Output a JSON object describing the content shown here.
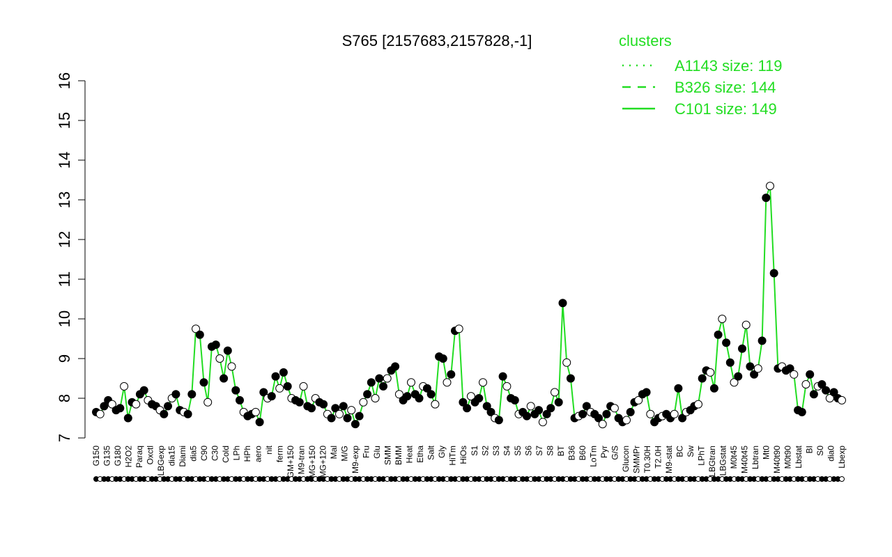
{
  "chart_data": {
    "type": "line",
    "title": "S765 [2157683,2157828,-1]",
    "xlabel": "",
    "ylabel": "",
    "ylim": [
      7,
      16
    ],
    "yticks": [
      7,
      8,
      9,
      10,
      11,
      12,
      13,
      14,
      15,
      16
    ],
    "grid": false,
    "legend_position": "top-right",
    "legend": {
      "title": "clusters",
      "entries": [
        {
          "label": "A1143 size: 119",
          "style": "dotted"
        },
        {
          "label": "B326 size: 144",
          "style": "dashed"
        },
        {
          "label": "C101 size: 149",
          "style": "solid"
        }
      ]
    },
    "line_color": "#22dd22",
    "x_labels": [
      "G150",
      "G135",
      "G180",
      "H2O2",
      "Paraq",
      "Oxctl",
      "LBGexp",
      "dia15",
      "Diami",
      "dia5",
      "C90",
      "C30",
      "Cold",
      "LPh",
      "HPh",
      "aero",
      "nit",
      "ferm",
      "GM+150",
      "M9-tran",
      "MG+150",
      "MG+120",
      "Mal",
      "M/G",
      "M9-exp",
      "Fru",
      "Glu",
      "SMM",
      "BMM",
      "Heat",
      "Etha",
      "Salt",
      "Gly",
      "HiTm",
      "HiOs",
      "S1",
      "S2",
      "S3",
      "S4",
      "S5",
      "S6",
      "S7",
      "S8",
      "BT",
      "B36",
      "B60",
      "LoTm",
      "Pyr",
      "G/S",
      "Glucon",
      "SMMPr",
      "T0.30H",
      "T2.0H",
      "M9-stat",
      "BC",
      "Sw",
      "LPhT",
      "LBGtran",
      "LBGstat",
      "M0t45",
      "M40t45",
      "Lbtran",
      "Mt0",
      "M40t90",
      "M0t90",
      "Lbstat",
      "BI",
      "S0",
      "dia0",
      "Lbexp"
    ],
    "values": [
      7.65,
      7.6,
      7.8,
      7.95,
      7.85,
      7.7,
      7.75,
      8.3,
      7.5,
      7.9,
      7.85,
      8.1,
      8.2,
      7.95,
      7.85,
      7.8,
      7.7,
      7.6,
      7.8,
      8.0,
      8.1,
      7.7,
      7.65,
      7.6,
      8.1,
      9.75,
      9.6,
      8.4,
      7.9,
      9.3,
      9.35,
      9.0,
      8.5,
      9.2,
      8.8,
      8.2,
      7.95,
      7.65,
      7.55,
      7.6,
      7.65,
      7.4,
      8.15,
      8.0,
      8.05,
      8.55,
      8.25,
      8.65,
      8.3,
      8.0,
      7.95,
      7.9,
      8.3,
      7.8,
      7.75,
      8.0,
      7.9,
      7.85,
      7.6,
      7.5,
      7.75,
      7.6,
      7.8,
      7.5,
      7.7,
      7.35,
      7.55,
      7.9,
      8.1,
      8.4,
      8.0,
      8.5,
      8.3,
      8.5,
      8.7,
      8.8,
      8.1,
      7.95,
      8.05,
      8.4,
      8.1,
      8.0,
      8.3,
      8.25,
      8.1,
      7.85,
      9.05,
      9.0,
      8.4,
      8.6,
      9.7,
      9.75,
      7.9,
      7.75,
      8.05,
      7.9,
      8.0,
      8.4,
      7.8,
      7.65,
      7.5,
      7.45,
      8.55,
      8.3,
      8.0,
      7.95,
      7.6,
      7.65,
      7.55,
      7.8,
      7.6,
      7.7,
      7.4,
      7.6,
      7.75,
      8.15,
      7.9,
      10.4,
      8.9,
      8.5,
      7.5,
      7.55,
      7.6,
      7.8,
      7.65,
      7.6,
      7.5,
      7.35,
      7.6,
      7.8,
      7.75,
      7.5,
      7.4,
      7.45,
      7.65,
      7.9,
      7.95,
      8.1,
      8.15,
      7.6,
      7.4,
      7.5,
      7.55,
      7.6,
      7.5,
      7.6,
      8.25,
      7.5,
      7.65,
      7.7,
      7.8,
      7.85,
      8.5,
      8.7,
      8.65,
      8.25,
      9.6,
      10.0,
      9.4,
      8.9,
      8.4,
      8.55,
      9.25,
      9.85,
      8.8,
      8.6,
      8.75,
      9.45,
      13.05,
      13.35,
      11.15,
      8.75,
      8.8,
      8.7,
      8.75,
      8.6,
      7.7,
      7.65,
      8.35,
      8.6,
      8.1,
      8.3,
      8.35,
      8.2,
      8.0,
      8.15,
      8.0,
      7.95
    ]
  }
}
